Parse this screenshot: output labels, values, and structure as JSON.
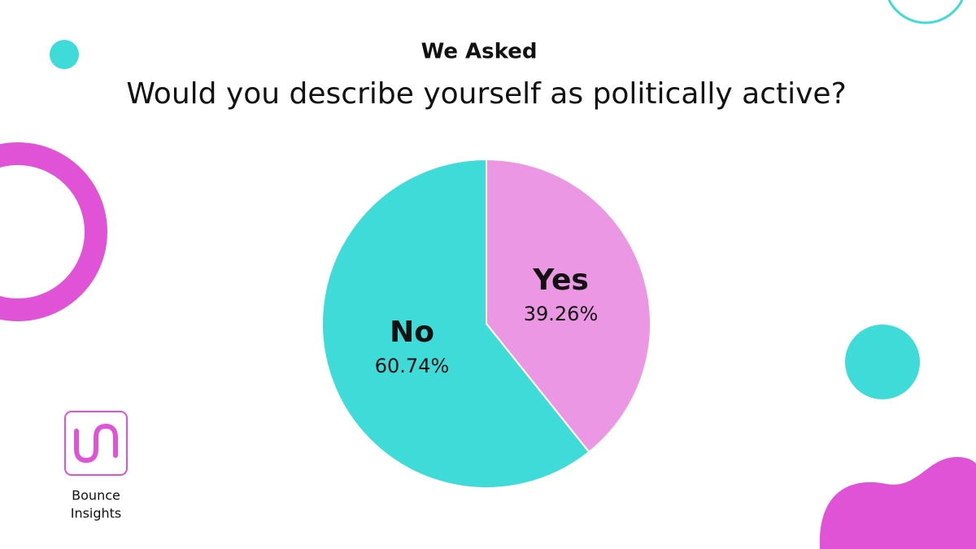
{
  "chart_data": {
    "type": "pie",
    "title": "We Asked",
    "subtitle": "Would you describe yourself as politically active?",
    "categories": [
      "Yes",
      "No"
    ],
    "values": [
      39.26,
      60.74
    ],
    "value_labels": [
      "39.26%",
      "60.74%"
    ],
    "colors": [
      "#ec97e4",
      "#3fdbd9"
    ]
  },
  "brand": [
    "Bounce",
    "Insights"
  ]
}
